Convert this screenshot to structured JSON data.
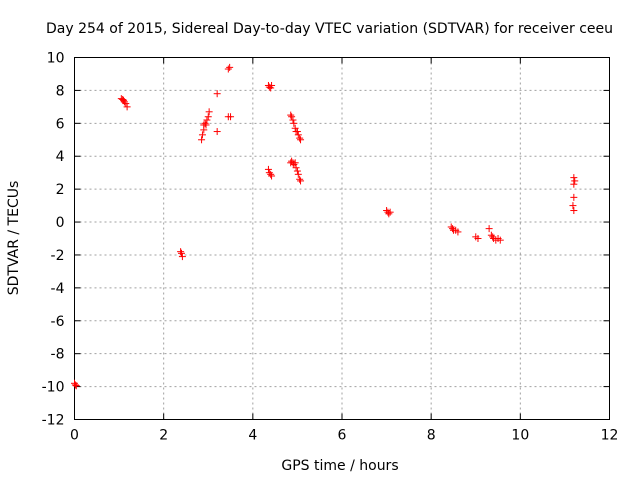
{
  "chart_data": {
    "type": "scatter",
    "title": "Day 254 of 2015, Sidereal Day-to-day VTEC variation (SDTVAR) for receiver ceeu",
    "xlabel": "GPS time / hours",
    "ylabel": "SDTVAR / TECUs",
    "xlim": [
      0,
      12
    ],
    "ylim": [
      -12,
      10
    ],
    "x_ticks": [
      0,
      2,
      4,
      6,
      8,
      10,
      12
    ],
    "y_ticks": [
      -12,
      -10,
      -8,
      -6,
      -4,
      -2,
      0,
      2,
      4,
      6,
      8,
      10
    ],
    "x_tick_labels": [
      "0",
      "2",
      "4",
      "6",
      "8",
      "10",
      "12"
    ],
    "y_tick_labels": [
      "-12",
      "-10",
      "-8",
      "-6",
      "-4",
      "-2",
      "0",
      "2",
      "4",
      "6",
      "8",
      "10"
    ],
    "grid": true,
    "marker": "+",
    "color": "#ff0000",
    "series": [
      {
        "name": "SDTVAR",
        "points": [
          [
            0.0,
            -9.8
          ],
          [
            0.02,
            -9.9
          ],
          [
            0.04,
            -9.95
          ],
          [
            1.05,
            7.5
          ],
          [
            1.08,
            7.45
          ],
          [
            1.1,
            7.4
          ],
          [
            1.12,
            7.3
          ],
          [
            1.15,
            7.2
          ],
          [
            1.18,
            7.0
          ],
          [
            2.38,
            -1.8
          ],
          [
            2.4,
            -1.9
          ],
          [
            2.42,
            -2.1
          ],
          [
            2.85,
            5.0
          ],
          [
            2.87,
            5.3
          ],
          [
            2.9,
            5.6
          ],
          [
            2.9,
            5.9
          ],
          [
            2.93,
            6.0
          ],
          [
            2.95,
            5.9
          ],
          [
            2.97,
            6.2
          ],
          [
            3.0,
            6.4
          ],
          [
            3.02,
            6.7
          ],
          [
            3.2,
            7.8
          ],
          [
            3.2,
            5.5
          ],
          [
            3.45,
            9.3
          ],
          [
            3.48,
            9.4
          ],
          [
            3.45,
            6.4
          ],
          [
            3.5,
            6.4
          ],
          [
            4.35,
            8.3
          ],
          [
            4.37,
            8.2
          ],
          [
            4.4,
            8.15
          ],
          [
            4.42,
            8.3
          ],
          [
            4.35,
            3.2
          ],
          [
            4.37,
            3.0
          ],
          [
            4.4,
            2.9
          ],
          [
            4.42,
            2.8
          ],
          [
            4.85,
            6.5
          ],
          [
            4.87,
            6.4
          ],
          [
            4.9,
            6.2
          ],
          [
            4.92,
            6.0
          ],
          [
            4.95,
            5.7
          ],
          [
            4.97,
            5.5
          ],
          [
            5.0,
            5.5
          ],
          [
            5.02,
            5.3
          ],
          [
            5.05,
            5.1
          ],
          [
            5.07,
            5.0
          ],
          [
            4.85,
            3.6
          ],
          [
            4.87,
            3.7
          ],
          [
            4.9,
            3.6
          ],
          [
            4.92,
            3.5
          ],
          [
            4.95,
            3.6
          ],
          [
            4.97,
            3.3
          ],
          [
            5.0,
            3.1
          ],
          [
            5.02,
            2.9
          ],
          [
            5.05,
            2.6
          ],
          [
            5.07,
            2.5
          ],
          [
            7.0,
            0.7
          ],
          [
            7.03,
            0.6
          ],
          [
            7.05,
            0.5
          ],
          [
            7.08,
            0.6
          ],
          [
            8.45,
            -0.3
          ],
          [
            8.48,
            -0.4
          ],
          [
            8.5,
            -0.5
          ],
          [
            8.55,
            -0.5
          ],
          [
            8.6,
            -0.6
          ],
          [
            9.0,
            -0.9
          ],
          [
            9.05,
            -1.0
          ],
          [
            9.3,
            -0.4
          ],
          [
            9.35,
            -0.8
          ],
          [
            9.38,
            -0.9
          ],
          [
            9.4,
            -1.0
          ],
          [
            9.45,
            -1.1
          ],
          [
            9.5,
            -1.0
          ],
          [
            9.55,
            -1.1
          ],
          [
            11.2,
            2.7
          ],
          [
            11.22,
            2.5
          ],
          [
            11.2,
            2.3
          ],
          [
            11.2,
            1.5
          ],
          [
            11.18,
            1.0
          ],
          [
            11.2,
            0.7
          ]
        ]
      }
    ]
  }
}
